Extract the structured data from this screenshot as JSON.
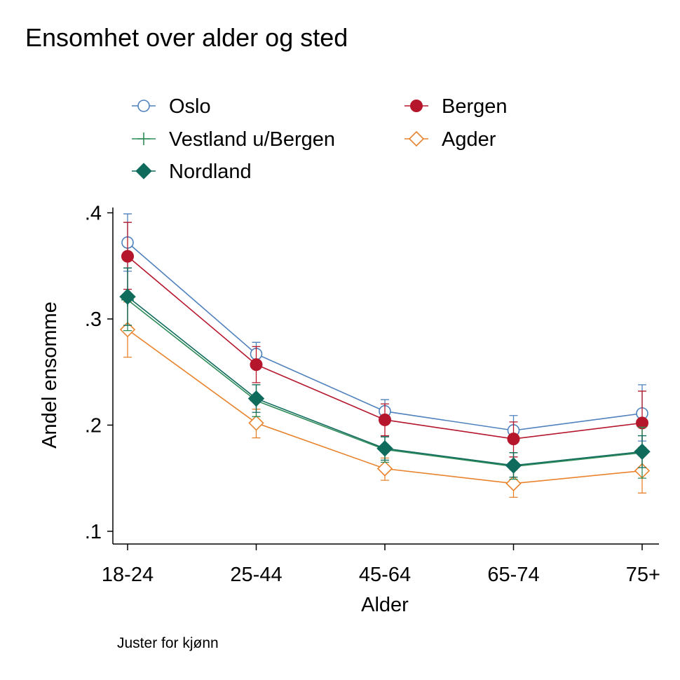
{
  "chart_data": {
    "type": "line",
    "title": "Ensomhet over alder og sted",
    "xlabel": "Alder",
    "ylabel": "Andel ensomme",
    "note": "Juster for kjønn",
    "categories": [
      "18-24",
      "25-44",
      "45-64",
      "65-74",
      "75+"
    ],
    "yticks": [
      0.1,
      0.2,
      0.3,
      0.4
    ],
    "ytick_labels": [
      ".1",
      ".2",
      ".3",
      ".4"
    ],
    "ylim": [
      0.088,
      0.405
    ],
    "grid": false,
    "legend_position": "top",
    "series": [
      {
        "name": "Oslo",
        "color": "#4f81bd",
        "marker": "circle-hollow",
        "values": [
          0.372,
          0.267,
          0.213,
          0.195,
          0.211
        ],
        "ci_low": [
          0.345,
          0.256,
          0.203,
          0.183,
          0.185
        ],
        "ci_high": [
          0.399,
          0.278,
          0.224,
          0.209,
          0.238
        ]
      },
      {
        "name": "Bergen",
        "color": "#b5162b",
        "marker": "circle-filled",
        "values": [
          0.359,
          0.257,
          0.205,
          0.187,
          0.202
        ],
        "ci_low": [
          0.328,
          0.24,
          0.19,
          0.17,
          0.172
        ],
        "ci_high": [
          0.391,
          0.274,
          0.22,
          0.203,
          0.232
        ]
      },
      {
        "name": "Vestland u/Bergen",
        "color": "#2e8b57",
        "marker": "plus",
        "values": [
          0.318,
          0.223,
          0.177,
          0.161,
          0.174
        ],
        "ci_low": [
          0.289,
          0.208,
          0.165,
          0.149,
          0.15
        ],
        "ci_high": [
          0.348,
          0.238,
          0.189,
          0.174,
          0.198
        ]
      },
      {
        "name": "Agder",
        "color": "#e8832d",
        "marker": "diamond-hollow",
        "values": [
          0.29,
          0.202,
          0.159,
          0.145,
          0.157
        ],
        "ci_low": [
          0.264,
          0.188,
          0.148,
          0.132,
          0.136
        ],
        "ci_high": [
          0.316,
          0.215,
          0.169,
          0.158,
          0.179
        ]
      },
      {
        "name": "Nordland",
        "color": "#0f6b5c",
        "marker": "diamond-filled",
        "values": [
          0.321,
          0.225,
          0.178,
          0.162,
          0.175
        ],
        "ci_low": [
          0.294,
          0.212,
          0.167,
          0.151,
          0.16
        ],
        "ci_high": [
          0.348,
          0.238,
          0.189,
          0.174,
          0.19
        ]
      }
    ],
    "legend_order": [
      "Oslo",
      "Bergen",
      "Vestland u/Bergen",
      "Agder",
      "Nordland"
    ]
  }
}
